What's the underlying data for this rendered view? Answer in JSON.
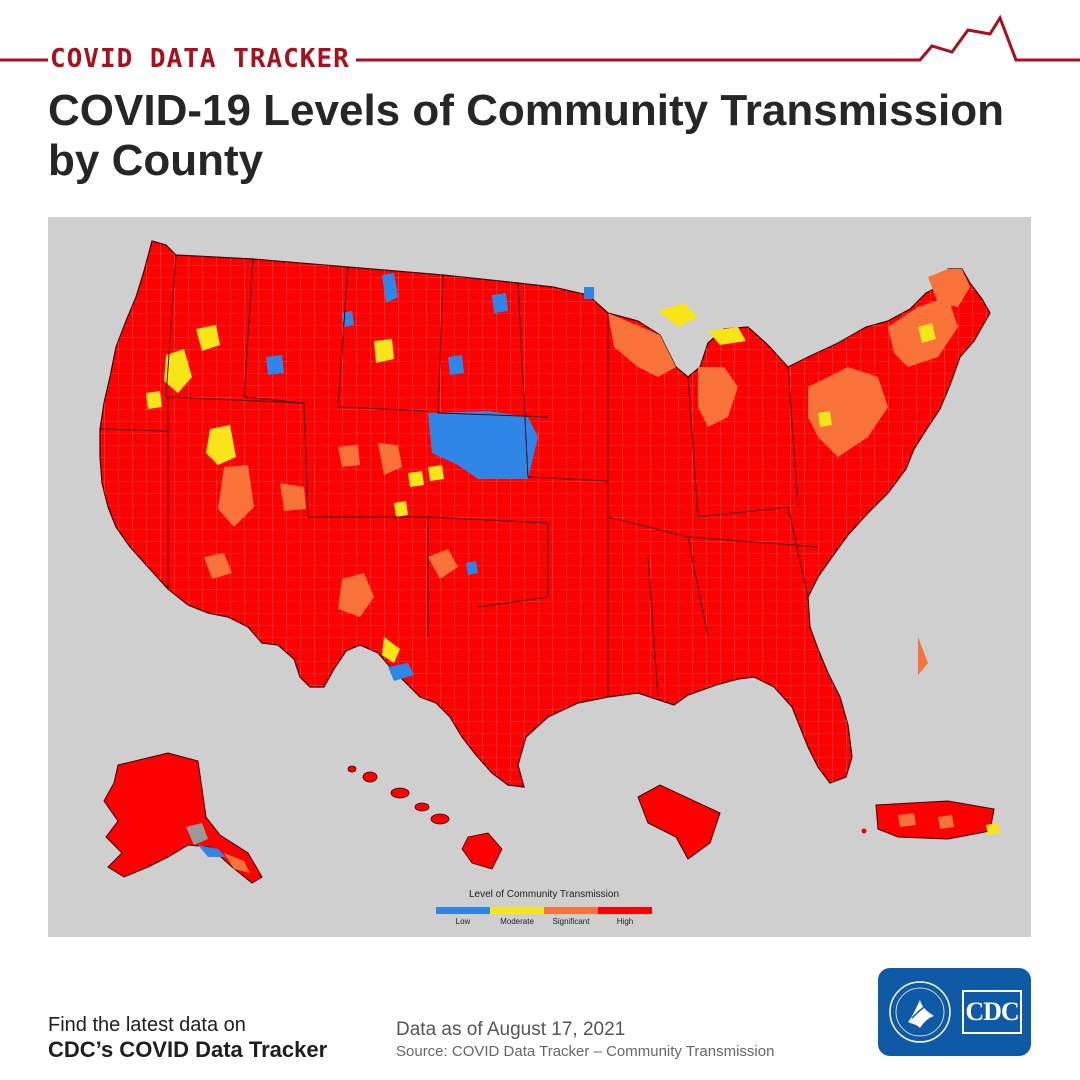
{
  "header": {
    "tracker_label": "COVID DATA TRACKER",
    "title_line1": "COVID-19 Levels of Community Transmission",
    "title_line2": "by County"
  },
  "map": {
    "legend": {
      "title": "Level of Community Transmission",
      "levels": [
        {
          "label": "Low",
          "color": "#2f86e6"
        },
        {
          "label": "Moderate",
          "color": "#f7e51a"
        },
        {
          "label": "Significant",
          "color": "#f7733a"
        },
        {
          "label": "High",
          "color": "#ff0000"
        }
      ]
    },
    "colors": {
      "background": "#cfcfcf",
      "high": "#ff0000",
      "significant": "#f7733a",
      "moderate": "#f7e51a",
      "low": "#2f86e6",
      "no_data": "#9a9a9a",
      "border": "#222222"
    },
    "predominant_level": "High"
  },
  "footer": {
    "cta_line1": "Find the latest data on",
    "cta_line2": "CDC’s COVID Data Tracker",
    "date_text": "Data as of August 17, 2021",
    "source_text": "Source: COVID Data Tracker – Community Transmission",
    "logo_text": "CDC"
  },
  "colors": {
    "accent": "#a8101e",
    "title_text": "#262626",
    "logo_blue": "#0e5aa7"
  }
}
